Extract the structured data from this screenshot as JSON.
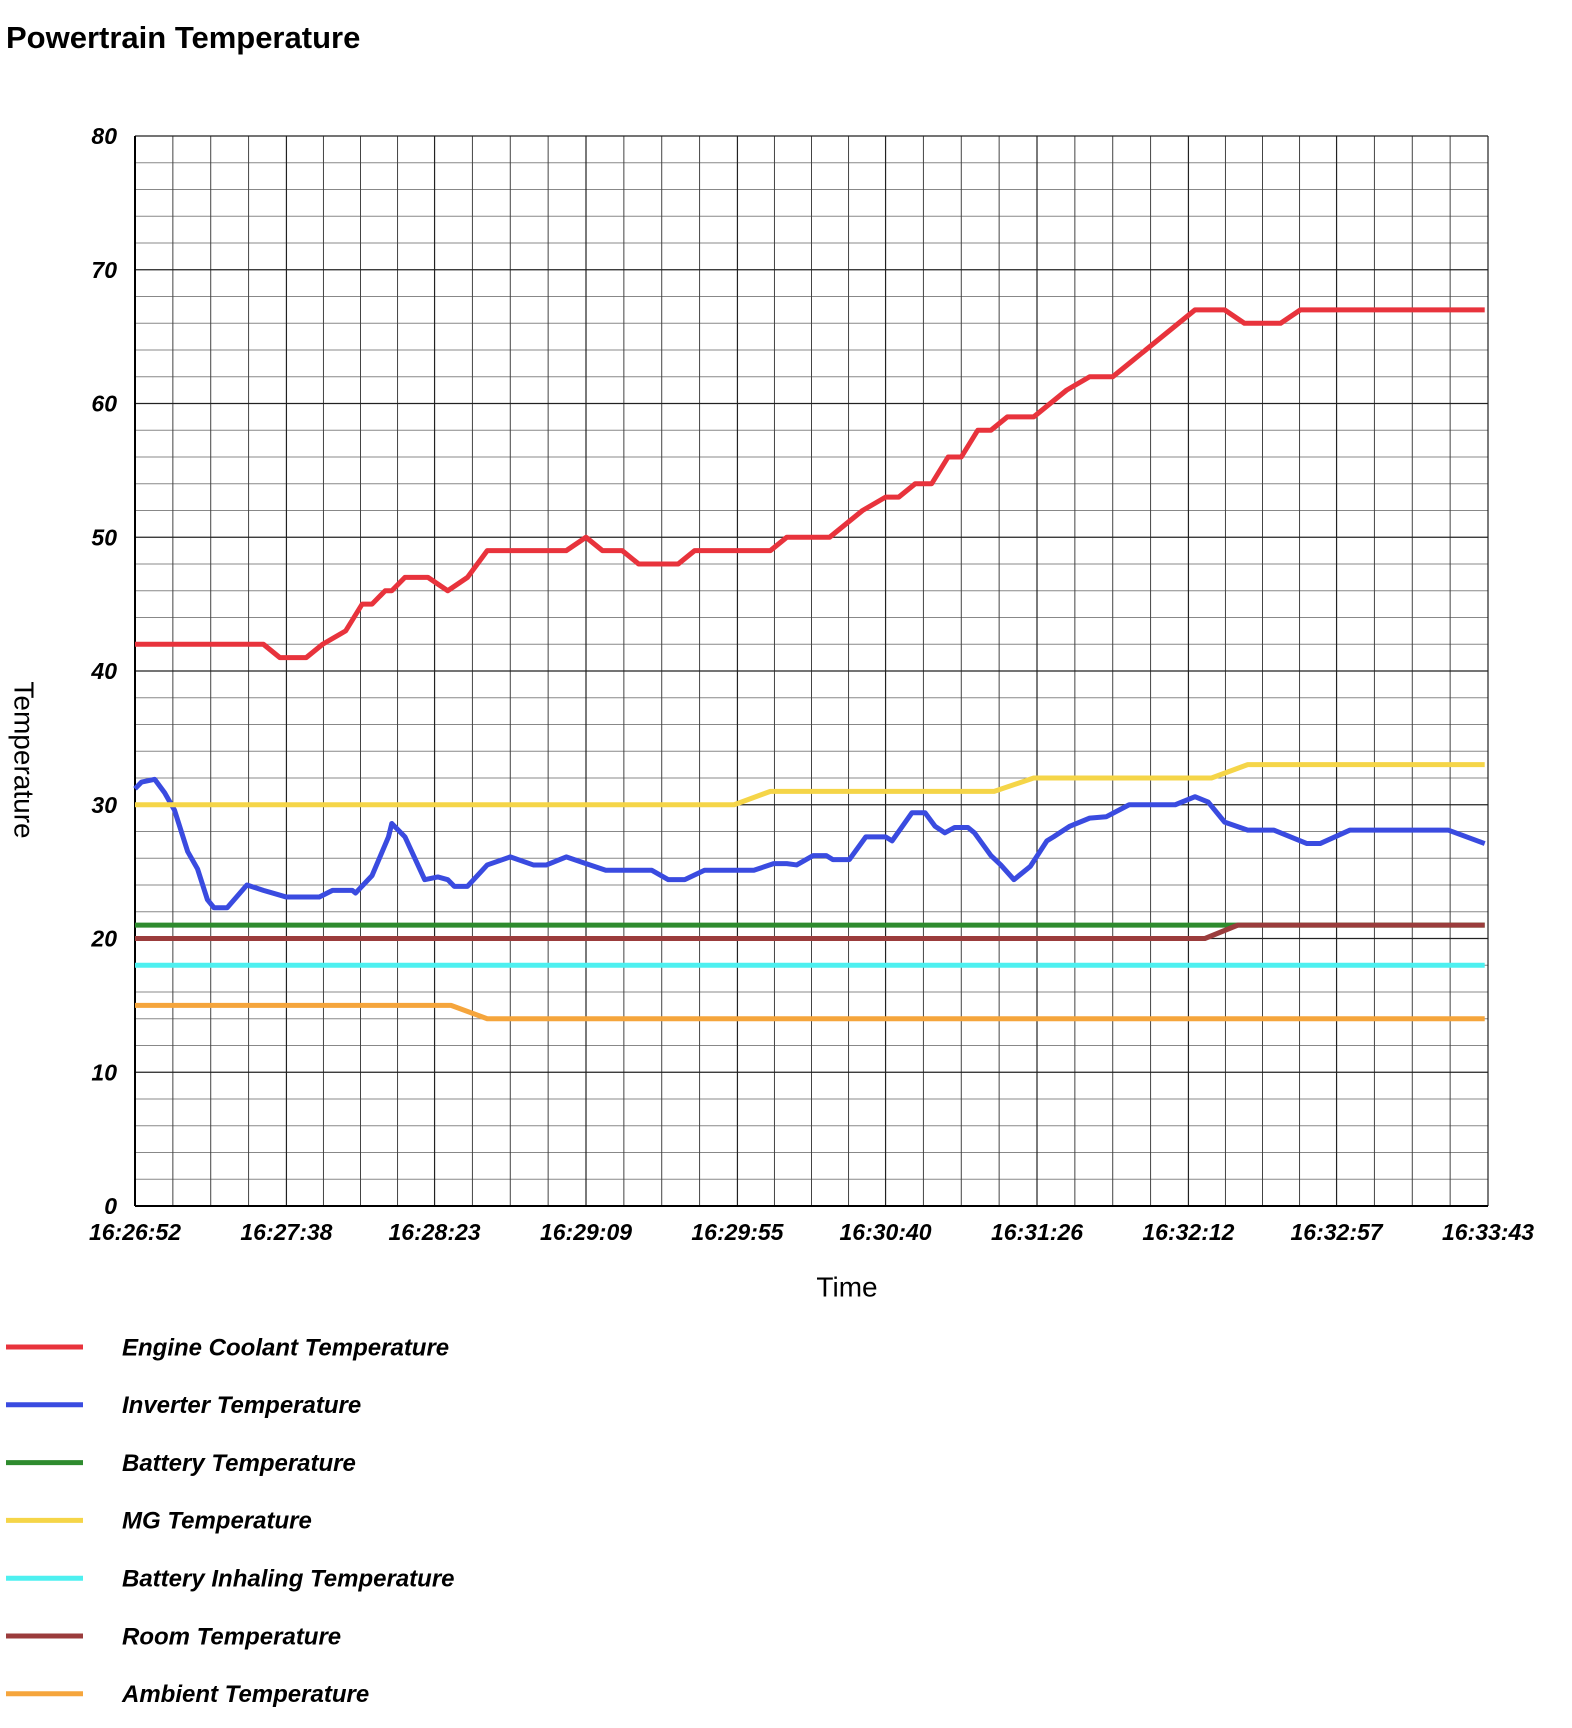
{
  "chart_data": {
    "type": "line",
    "title": "Powertrain Temperature",
    "x_label": "Time",
    "y_label": "Temperature",
    "xlim": [
      60412,
      60823
    ],
    "xticks": [
      {
        "value": 60412,
        "label": "16:26:52"
      },
      {
        "value": 60458,
        "label": "16:27:38"
      },
      {
        "value": 60503,
        "label": "16:28:23"
      },
      {
        "value": 60549,
        "label": "16:29:09"
      },
      {
        "value": 60595,
        "label": "16:29:55"
      },
      {
        "value": 60640,
        "label": "16:30:40"
      },
      {
        "value": 60686,
        "label": "16:31:26"
      },
      {
        "value": 60732,
        "label": "16:32:12"
      },
      {
        "value": 60777,
        "label": "16:32:57"
      },
      {
        "value": 60823,
        "label": "16:33:43"
      }
    ],
    "ylim": [
      0,
      80
    ],
    "yticks": [
      0,
      10,
      20,
      30,
      40,
      50,
      60,
      70,
      80
    ],
    "grid": true,
    "grid_minor": {
      "x": 4,
      "y": 5
    },
    "legend": "bottom",
    "series": [
      {
        "name": "Engine Coolant Temperature",
        "color": "#e8333c",
        "x": [
          60412,
          60451,
          60456,
          60464,
          60469,
          60476,
          60481,
          60484,
          60488,
          60490,
          60494,
          60501,
          60507,
          60513,
          60519,
          60543,
          60549,
          60554,
          60560,
          60565,
          60577,
          60582,
          60605,
          60610,
          60623,
          60628,
          60633,
          60640,
          60644,
          60649,
          60654,
          60659,
          60663,
          60668,
          60672,
          60677,
          60685,
          60690,
          60695,
          60702,
          60709,
          60714,
          60719,
          60724,
          60729,
          60734,
          60743,
          60749,
          60760,
          60766,
          60822
        ],
        "values": [
          42,
          42,
          41,
          41,
          42,
          43,
          45,
          45,
          46,
          46,
          47,
          47,
          46,
          47,
          49,
          49,
          50,
          49,
          49,
          48,
          48,
          49,
          49,
          50,
          50,
          51,
          52,
          53,
          53,
          54,
          54,
          56,
          56,
          58,
          58,
          59,
          59,
          60,
          61,
          62,
          62,
          63,
          64,
          65,
          66,
          67,
          67,
          66,
          66,
          67,
          67
        ]
      },
      {
        "name": "Inverter Temperature",
        "color": "#3a4be0",
        "x": [
          60412,
          60414,
          60418,
          60421,
          60424,
          60428,
          60431,
          60434,
          60436,
          60440,
          60446,
          60451,
          60458,
          60468,
          60472,
          60478,
          60479,
          60484,
          60489,
          60490,
          60494,
          60500,
          60504,
          60507,
          60509,
          60513,
          60519,
          60526,
          60533,
          60537,
          60543,
          60549,
          60555,
          60569,
          60574,
          60579,
          60585,
          60600,
          60606,
          60610,
          60613,
          60618,
          60622,
          60624,
          60629,
          60634,
          60640,
          60642,
          60648,
          60652,
          60655,
          60658,
          60661,
          60665,
          60667,
          60672,
          60675,
          60679,
          60684,
          60689,
          60691,
          60696,
          60702,
          60707,
          60714,
          60728,
          60734,
          60738,
          60743,
          60750,
          60758,
          60768,
          60772,
          60781,
          60811,
          60822
        ],
        "values": [
          31.2,
          31.7,
          31.9,
          30.9,
          29.6,
          26.5,
          25.2,
          22.9,
          22.3,
          22.3,
          24,
          23.6,
          23.1,
          23.1,
          23.6,
          23.6,
          23.4,
          24.7,
          27.6,
          28.6,
          27.6,
          24.4,
          24.6,
          24.4,
          23.9,
          23.9,
          25.5,
          26.1,
          25.5,
          25.5,
          26.1,
          25.6,
          25.1,
          25.1,
          24.4,
          24.4,
          25.1,
          25.1,
          25.6,
          25.6,
          25.5,
          26.2,
          26.2,
          25.9,
          25.9,
          27.6,
          27.6,
          27.3,
          29.4,
          29.4,
          28.4,
          27.9,
          28.3,
          28.3,
          27.9,
          26.2,
          25.5,
          24.4,
          25.4,
          27.3,
          27.6,
          28.4,
          29.0,
          29.1,
          30,
          30,
          30.6,
          30.2,
          28.7,
          28.1,
          28.1,
          27.1,
          27.1,
          28.1,
          28.1,
          27.1
        ]
      },
      {
        "name": "Battery Temperature",
        "color": "#2e8b2e",
        "x": [
          60412,
          60822
        ],
        "values": [
          21,
          21
        ]
      },
      {
        "name": "MG Temperature",
        "color": "#f5d548",
        "x": [
          60412,
          60594,
          60605,
          60673,
          60685,
          60739,
          60750,
          60822
        ],
        "values": [
          30,
          30,
          31,
          31,
          32,
          32,
          33,
          33
        ]
      },
      {
        "name": "Battery Inhaling Temperature",
        "color": "#4df0f0",
        "x": [
          60412,
          60822
        ],
        "values": [
          18,
          18
        ]
      },
      {
        "name": "Room Temperature",
        "color": "#9b3c3c",
        "x": [
          60412,
          60737,
          60747,
          60822
        ],
        "values": [
          20,
          20,
          21,
          21
        ]
      },
      {
        "name": "Ambient Temperature",
        "color": "#f5a53c",
        "x": [
          60412,
          60508,
          60519,
          60822
        ],
        "values": [
          15,
          15,
          14,
          14
        ]
      }
    ]
  }
}
